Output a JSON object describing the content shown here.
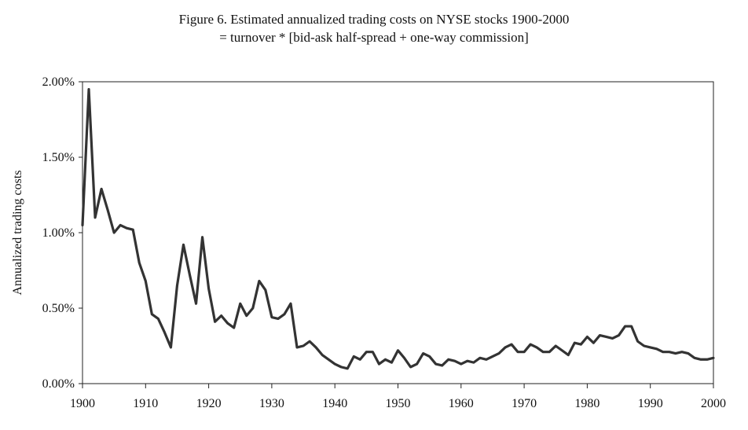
{
  "chart_data": {
    "type": "line",
    "title": "Figure 6.  Estimated annualized trading costs on NYSE stocks 1900-2000",
    "subtitle": "= turnover * [bid-ask half-spread + one-way commission]",
    "xlabel": "",
    "ylabel": "Annualized trading costs",
    "xlim": [
      1900,
      2000
    ],
    "ylim": [
      0,
      2.0
    ],
    "x_ticks": [
      1900,
      1910,
      1920,
      1930,
      1940,
      1950,
      1960,
      1970,
      1980,
      1990,
      2000
    ],
    "y_ticks": [
      "0.00%",
      "0.50%",
      "1.00%",
      "1.50%",
      "2.00%"
    ],
    "y_tick_values": [
      0,
      0.5,
      1.0,
      1.5,
      2.0
    ],
    "grid": false,
    "series": [
      {
        "x": [
          1900,
          1901,
          1902,
          1903,
          1904,
          1905,
          1906,
          1907,
          1908,
          1909,
          1910,
          1911,
          1912,
          1913,
          1914,
          1915,
          1916,
          1917,
          1918,
          1919,
          1920,
          1921,
          1922,
          1923,
          1924,
          1925,
          1926,
          1927,
          1928,
          1929,
          1930,
          1931,
          1932,
          1933,
          1934,
          1935,
          1936,
          1937,
          1938,
          1939,
          1940,
          1941,
          1942,
          1943,
          1944,
          1945,
          1946,
          1947,
          1948,
          1949,
          1950,
          1951,
          1952,
          1953,
          1954,
          1955,
          1956,
          1957,
          1958,
          1959,
          1960,
          1961,
          1962,
          1963,
          1964,
          1965,
          1966,
          1967,
          1968,
          1969,
          1970,
          1971,
          1972,
          1973,
          1974,
          1975,
          1976,
          1977,
          1978,
          1979,
          1980,
          1981,
          1982,
          1983,
          1984,
          1985,
          1986,
          1987,
          1988,
          1989,
          1990,
          1991,
          1992,
          1993,
          1994,
          1995,
          1996,
          1997,
          1998,
          1999,
          2000
        ],
        "values": [
          1.05,
          1.95,
          1.1,
          1.29,
          1.15,
          1.0,
          1.05,
          1.03,
          1.02,
          0.8,
          0.68,
          0.46,
          0.43,
          0.34,
          0.24,
          0.65,
          0.92,
          0.72,
          0.53,
          0.97,
          0.63,
          0.41,
          0.45,
          0.4,
          0.37,
          0.53,
          0.45,
          0.5,
          0.68,
          0.62,
          0.44,
          0.43,
          0.46,
          0.53,
          0.24,
          0.25,
          0.28,
          0.24,
          0.19,
          0.16,
          0.13,
          0.11,
          0.1,
          0.18,
          0.16,
          0.21,
          0.21,
          0.13,
          0.16,
          0.14,
          0.22,
          0.17,
          0.11,
          0.13,
          0.2,
          0.18,
          0.13,
          0.12,
          0.16,
          0.15,
          0.13,
          0.15,
          0.14,
          0.17,
          0.16,
          0.18,
          0.2,
          0.24,
          0.26,
          0.21,
          0.21,
          0.26,
          0.24,
          0.21,
          0.21,
          0.25,
          0.22,
          0.19,
          0.27,
          0.26,
          0.31,
          0.27,
          0.32,
          0.31,
          0.3,
          0.32,
          0.38,
          0.38,
          0.28,
          0.25,
          0.24,
          0.23,
          0.21,
          0.21,
          0.2,
          0.21,
          0.2,
          0.17,
          0.16,
          0.16,
          0.17
        ],
        "color": "#333333"
      }
    ]
  }
}
